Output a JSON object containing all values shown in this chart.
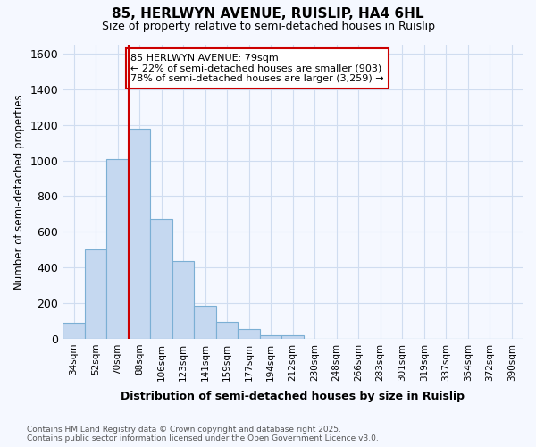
{
  "title1": "85, HERLWYN AVENUE, RUISLIP, HA4 6HL",
  "title2": "Size of property relative to semi-detached houses in Ruislip",
  "xlabel": "Distribution of semi-detached houses by size in Ruislip",
  "ylabel": "Number of semi-detached properties",
  "bar_labels": [
    "34sqm",
    "52sqm",
    "70sqm",
    "88sqm",
    "106sqm",
    "123sqm",
    "141sqm",
    "159sqm",
    "177sqm",
    "194sqm",
    "212sqm",
    "230sqm",
    "248sqm",
    "266sqm",
    "283sqm",
    "301sqm",
    "319sqm",
    "337sqm",
    "354sqm",
    "372sqm",
    "390sqm"
  ],
  "bar_heights": [
    90,
    500,
    1010,
    1180,
    670,
    435,
    185,
    95,
    55,
    20,
    20,
    0,
    0,
    0,
    0,
    0,
    0,
    0,
    0,
    0,
    0
  ],
  "bar_color": "#c5d8f0",
  "bar_edge_color": "#7bafd4",
  "background_color": "#f5f8ff",
  "grid_color": "#d0ddf0",
  "vline_x": 2,
  "vline_color": "#cc0000",
  "annotation_text": "85 HERLWYN AVENUE: 79sqm\n← 22% of semi-detached houses are smaller (903)\n78% of semi-detached houses are larger (3,259) →",
  "annotation_box_color": "white",
  "annotation_box_edge": "#cc0000",
  "ylim": [
    0,
    1650
  ],
  "yticks": [
    0,
    200,
    400,
    600,
    800,
    1000,
    1200,
    1400,
    1600
  ],
  "footnote": "Contains HM Land Registry data © Crown copyright and database right 2025.\nContains public sector information licensed under the Open Government Licence v3.0.",
  "bin_width": 1
}
